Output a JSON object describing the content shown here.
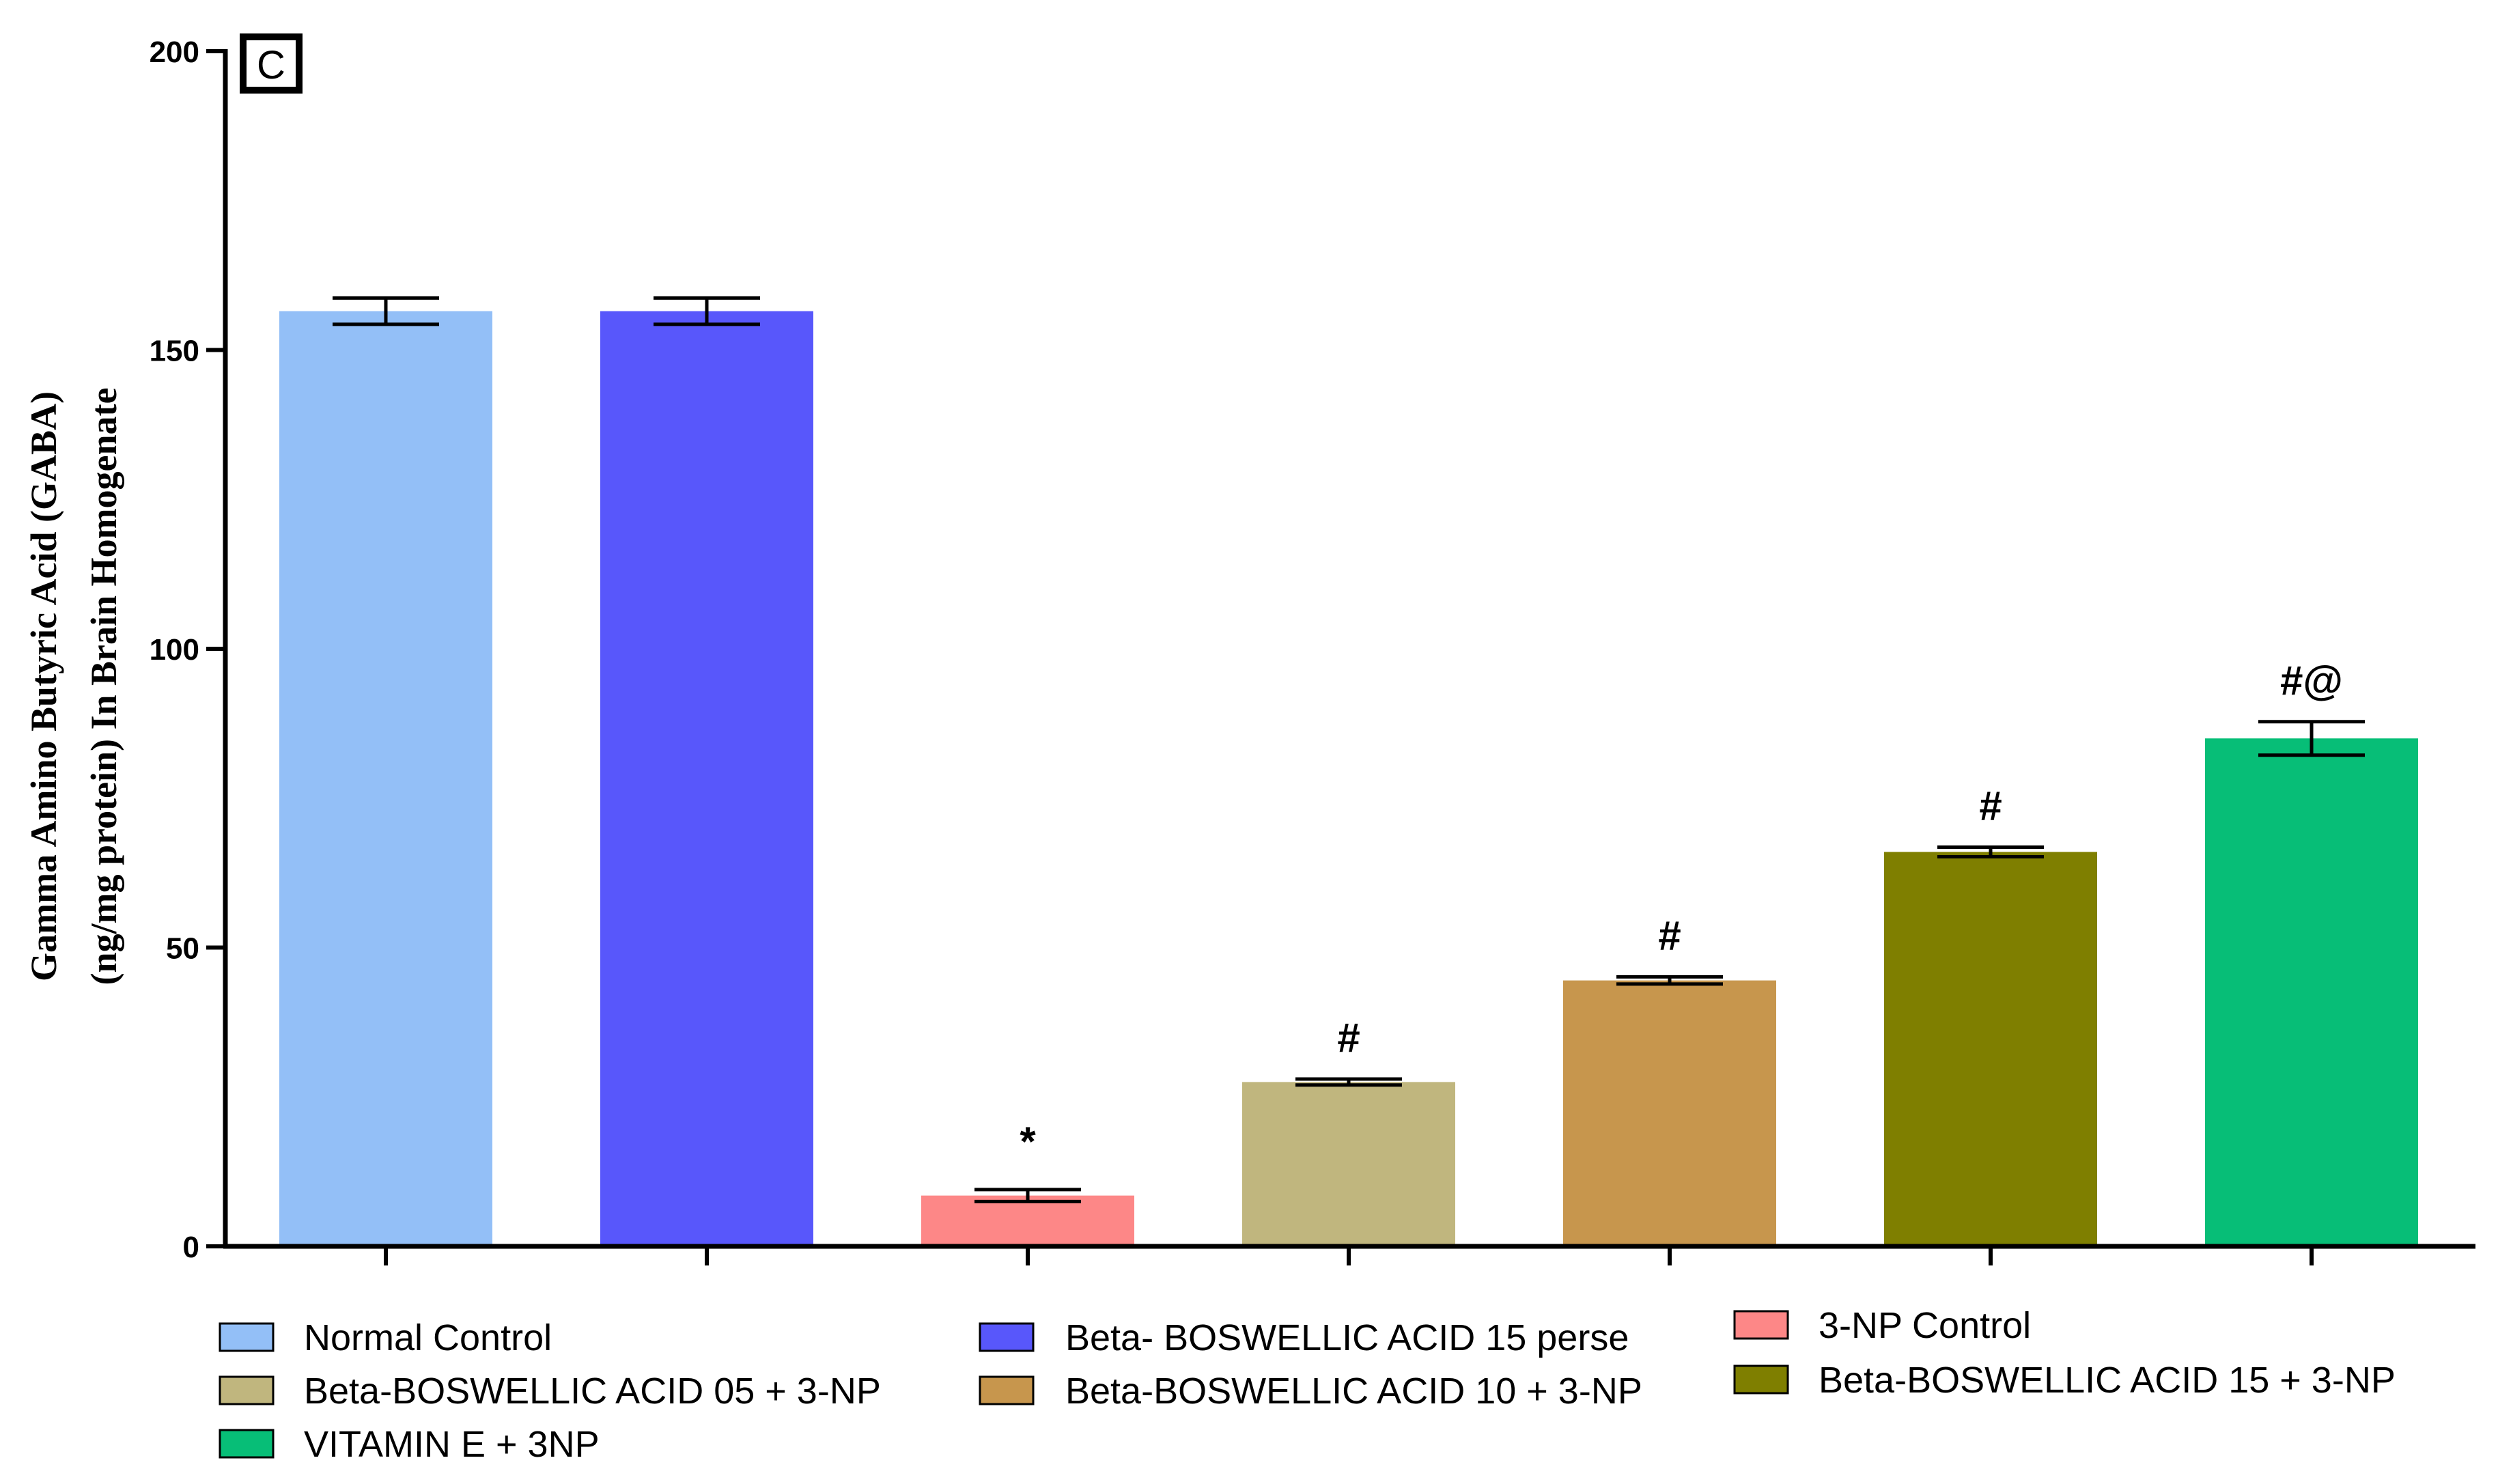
{
  "chart_data": {
    "type": "bar",
    "panel_label": "C",
    "ylabel_line1": "Gamma Amino Butyric Acid (GABA)",
    "ylabel_line2": "(ng/mg protein) In Brain  Homogenate",
    "xlabel": "",
    "ylim": [
      0,
      200
    ],
    "yticks": [
      0,
      50,
      100,
      150,
      200
    ],
    "categories": [
      "Normal Control",
      "Beta- BOSWELLIC ACID 15 perse",
      "3-NP Control",
      "Beta-BOSWELLIC ACID 05 + 3-NP",
      "Beta-BOSWELLIC ACID 10 + 3-NP",
      "Beta-BOSWELLIC ACID 15 + 3-NP",
      "VITAMIN E + 3NP"
    ],
    "values": [
      156.5,
      156.5,
      8.5,
      27.5,
      44.5,
      66.0,
      85.0
    ],
    "errors": [
      2.2,
      2.2,
      1.0,
      0.5,
      0.6,
      0.8,
      2.8
    ],
    "colors": [
      "#93BFF7",
      "#5857FB",
      "#FD8787",
      "#C0B67E",
      "#C7964D",
      "#7F7F00",
      "#07BE77"
    ],
    "annotations": [
      "",
      "",
      "*",
      "#",
      "#",
      "#",
      "#@"
    ],
    "legend": [
      {
        "label": "Normal Control",
        "color": "#93BFF7"
      },
      {
        "label": "Beta- BOSWELLIC ACID 15 perse",
        "color": "#5857FB"
      },
      {
        "label": "3-NP Control",
        "color": "#FD8787"
      },
      {
        "label": "Beta-BOSWELLIC ACID 05 + 3-NP",
        "color": "#C0B67E"
      },
      {
        "label": "Beta-BOSWELLIC ACID 10 + 3-NP",
        "color": "#C7964D"
      },
      {
        "label": "Beta-BOSWELLIC ACID 15 + 3-NP",
        "color": "#7F7F00"
      },
      {
        "label": "VITAMIN E + 3NP",
        "color": "#07BE77"
      }
    ]
  }
}
